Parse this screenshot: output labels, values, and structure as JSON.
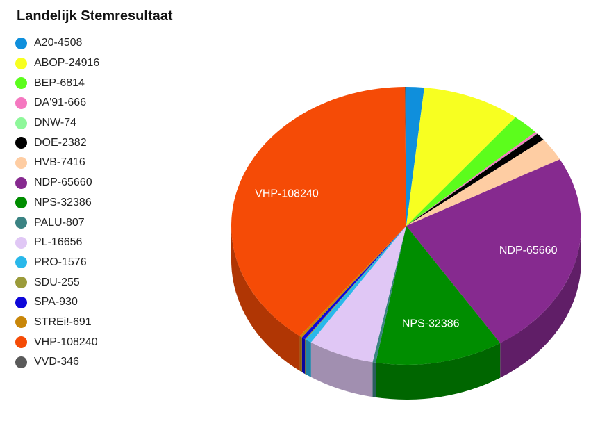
{
  "chart_data": {
    "type": "pie",
    "title": "Landelijk Stemresultaat",
    "series": [
      {
        "name": "A20-4508",
        "value": 4508,
        "color": "#0f8fdc"
      },
      {
        "name": "ABOP-24916",
        "value": 24916,
        "color": "#f7ff21"
      },
      {
        "name": "BEP-6814",
        "value": 6814,
        "color": "#5cfd1c"
      },
      {
        "name": "DA'91-666",
        "value": 666,
        "color": "#f578c0"
      },
      {
        "name": "DNW-74",
        "value": 74,
        "color": "#8ef79a"
      },
      {
        "name": "DOE-2382",
        "value": 2382,
        "color": "#000000"
      },
      {
        "name": "HVB-7416",
        "value": 7416,
        "color": "#fecda3"
      },
      {
        "name": "NDP-65660",
        "value": 65660,
        "color": "#862a8f"
      },
      {
        "name": "NPS-32386",
        "value": 32386,
        "color": "#008d00"
      },
      {
        "name": "PALU-807",
        "value": 807,
        "color": "#3b8383"
      },
      {
        "name": "PL-16656",
        "value": 16656,
        "color": "#e0c7f5"
      },
      {
        "name": "PRO-1576",
        "value": 1576,
        "color": "#29b8ea"
      },
      {
        "name": "SDU-255",
        "value": 255,
        "color": "#9b9b3a"
      },
      {
        "name": "SPA-930",
        "value": 930,
        "color": "#0e07d9"
      },
      {
        "name": "STREi!-691",
        "value": 691,
        "color": "#c88609"
      },
      {
        "name": "VHP-108240",
        "value": 108240,
        "color": "#f54b06"
      },
      {
        "name": "VVD-346",
        "value": 346,
        "color": "#5a5a5a"
      }
    ],
    "data_labels": [
      "NDP-65660",
      "NPS-32386",
      "VHP-108240"
    ],
    "legend_position": "left"
  }
}
